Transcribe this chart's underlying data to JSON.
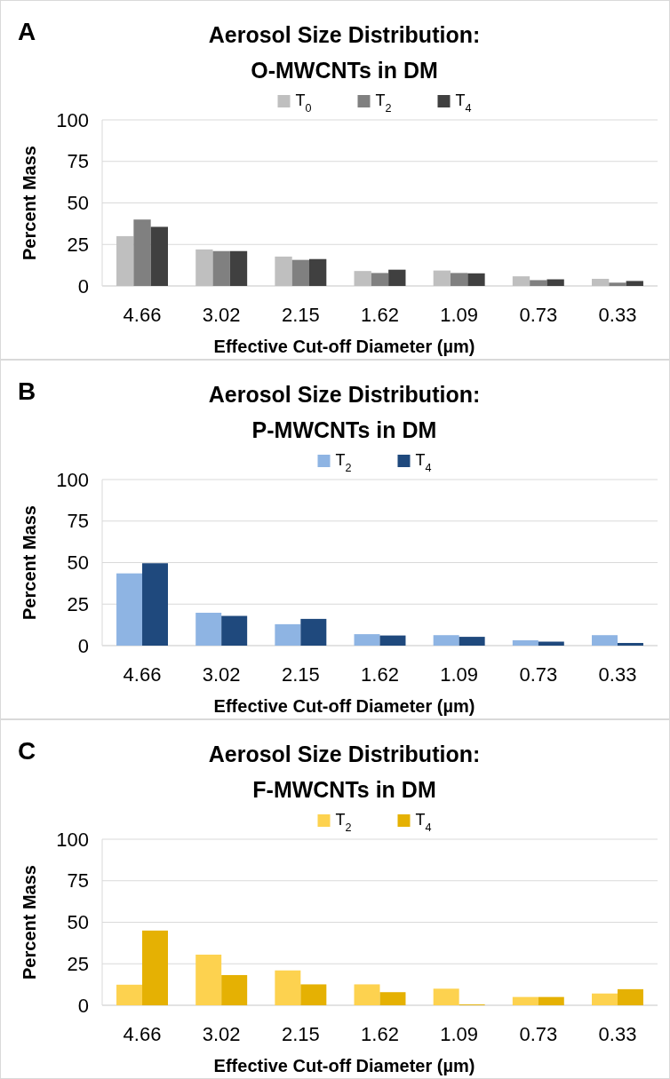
{
  "chart_data": [
    {
      "type": "bar",
      "title": "Aerosol Size Distribution:\nO-MWCNTs in DM",
      "annotations": [
        "A"
      ],
      "xlabel": "Effective Cut-off Diameter (µm)",
      "ylabel": "Percent Mass",
      "categories": [
        "4.66",
        "3.02",
        "2.15",
        "1.62",
        "1.09",
        "0.73",
        "0.33"
      ],
      "series": [
        {
          "name": "T$_{0}$",
          "color": "#bfbfbf",
          "values": [
            30,
            22,
            17.7,
            9,
            9.3,
            5.8,
            4.3
          ]
        },
        {
          "name": "T$_{2}$",
          "color": "#808080",
          "values": [
            40,
            21,
            15.7,
            7.8,
            7.8,
            3.5,
            2
          ]
        },
        {
          "name": "T$_{4}$",
          "color": "#404040",
          "values": [
            35.6,
            21,
            16.2,
            9.8,
            7.6,
            4,
            3
          ]
        }
      ],
      "ylim": [
        0,
        100
      ],
      "yticks": [
        0,
        25,
        50,
        75,
        100
      ],
      "grid": "y",
      "legend": "top"
    },
    {
      "type": "bar",
      "title": "Aerosol Size Distribution:\nP-MWCNTs in DM",
      "annotations": [
        "B"
      ],
      "xlabel": "Effective Cut-off Diameter (µm)",
      "ylabel": "Percent Mass",
      "categories": [
        "4.66",
        "3.02",
        "2.15",
        "1.62",
        "1.09",
        "0.73",
        "0.33"
      ],
      "series": [
        {
          "name": "T$_{2}$",
          "color": "#8eb4e3",
          "values": [
            43.5,
            19.8,
            12.9,
            6.9,
            6.3,
            3.2,
            6.3
          ]
        },
        {
          "name": "T$_{4}$",
          "color": "#1f497d",
          "values": [
            49.6,
            17.9,
            16.1,
            6.1,
            5.3,
            2.4,
            1.6
          ]
        }
      ],
      "ylim": [
        0,
        100
      ],
      "yticks": [
        0,
        25,
        50,
        75,
        100
      ],
      "grid": "y",
      "legend": "top"
    },
    {
      "type": "bar",
      "title": "Aerosol Size Distribution:\nF-MWCNTs in DM",
      "annotations": [
        "C"
      ],
      "xlabel": "Effective Cut-off Diameter (µm)",
      "ylabel": "Percent Mass",
      "categories": [
        "4.66",
        "3.02",
        "2.15",
        "1.62",
        "1.09",
        "0.73",
        "0.33"
      ],
      "series": [
        {
          "name": "T$_{2}$",
          "color": "#fdd24f",
          "values": [
            12.4,
            30.5,
            21,
            12.6,
            10,
            5,
            7.1
          ]
        },
        {
          "name": "T$_{4}$",
          "color": "#e5b103",
          "values": [
            45,
            18.2,
            12.6,
            7.9,
            0.5,
            5,
            9.7
          ]
        }
      ],
      "ylim": [
        0,
        100
      ],
      "yticks": [
        0,
        25,
        50,
        75,
        100
      ],
      "grid": "y",
      "legend": "top"
    }
  ]
}
